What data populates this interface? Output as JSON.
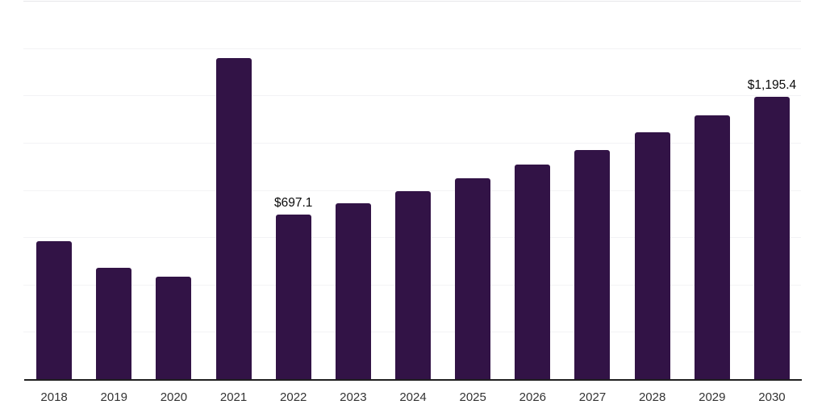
{
  "page": {
    "background_color": "#ffffff"
  },
  "chart_data": {
    "type": "bar",
    "title": "",
    "xlabel": "",
    "ylabel": "",
    "categories": [
      "2018",
      "2019",
      "2020",
      "2021",
      "2022",
      "2023",
      "2024",
      "2025",
      "2026",
      "2027",
      "2028",
      "2029",
      "2030"
    ],
    "values": [
      583,
      470,
      432,
      1358,
      697.1,
      744,
      795,
      850,
      907,
      969,
      1044,
      1116,
      1195.4
    ],
    "data_labels": [
      "",
      "",
      "",
      "",
      "$697.1",
      "",
      "",
      "",
      "",
      "",
      "",
      "",
      "$1,195.4"
    ],
    "value_prefix": "$",
    "ylim": [
      0,
      1600
    ],
    "gridline_step": 200,
    "grid": "horizontal-only",
    "y_axis_labels_shown": false,
    "legend_position": "none",
    "bar_color": "#321346",
    "axis_color": "#1f1f1f",
    "gridline_color": "#f3f3f5",
    "top_gridline_color": "#e6e6ea",
    "data_label_color": "#0b0b0b",
    "tick_label_color": "#333333"
  }
}
